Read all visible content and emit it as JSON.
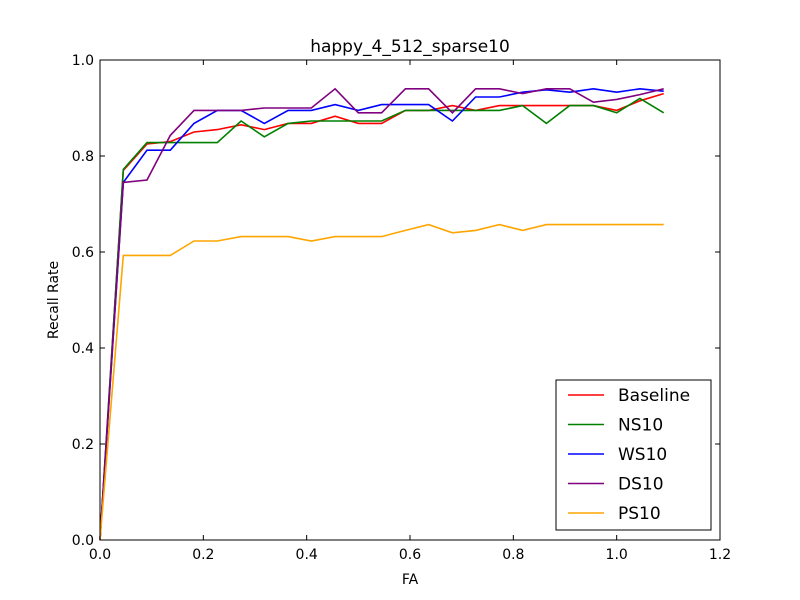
{
  "chart_data": {
    "type": "line",
    "title": "happy_4_512_sparse10",
    "xlabel": "FA",
    "ylabel": "Recall Rate",
    "xlim": [
      0.0,
      1.2
    ],
    "ylim": [
      0.0,
      1.0
    ],
    "xticks": [
      0.0,
      0.2,
      0.4,
      0.6,
      0.8,
      1.0,
      1.2
    ],
    "yticks": [
      0.0,
      0.2,
      0.4,
      0.6,
      0.8,
      1.0
    ],
    "xtick_labels": [
      "0.0",
      "0.2",
      "0.4",
      "0.6",
      "0.8",
      "1.0",
      "1.2"
    ],
    "ytick_labels": [
      "0.0",
      "0.2",
      "0.4",
      "0.6",
      "0.8",
      "1.0"
    ],
    "grid": false,
    "legend_position": "lower-right",
    "x": [
      0.0,
      0.045,
      0.091,
      0.136,
      0.182,
      0.227,
      0.273,
      0.318,
      0.364,
      0.409,
      0.455,
      0.5,
      0.545,
      0.591,
      0.636,
      0.682,
      0.727,
      0.773,
      0.818,
      0.864,
      0.909,
      0.955,
      1.0,
      1.045,
      1.091
    ],
    "series": [
      {
        "name": "Baseline",
        "color": "#ff0000",
        "values": [
          0.0,
          0.77,
          0.825,
          0.83,
          0.85,
          0.855,
          0.865,
          0.855,
          0.868,
          0.868,
          0.883,
          0.868,
          0.868,
          0.895,
          0.895,
          0.905,
          0.895,
          0.905,
          0.905,
          0.905,
          0.905,
          0.905,
          0.895,
          0.915,
          0.93
        ]
      },
      {
        "name": "NS10",
        "color": "#008000",
        "values": [
          0.0,
          0.772,
          0.828,
          0.828,
          0.828,
          0.828,
          0.873,
          0.84,
          0.868,
          0.873,
          0.873,
          0.873,
          0.873,
          0.895,
          0.895,
          0.895,
          0.895,
          0.895,
          0.905,
          0.868,
          0.905,
          0.905,
          0.89,
          0.92,
          0.89
        ]
      },
      {
        "name": "WS10",
        "color": "#0000ff",
        "values": [
          0.0,
          0.745,
          0.812,
          0.812,
          0.868,
          0.895,
          0.895,
          0.868,
          0.895,
          0.895,
          0.907,
          0.895,
          0.907,
          0.907,
          0.907,
          0.873,
          0.923,
          0.923,
          0.933,
          0.938,
          0.933,
          0.94,
          0.933,
          0.94,
          0.935
        ]
      },
      {
        "name": "DS10",
        "color": "#800080",
        "values": [
          0.0,
          0.745,
          0.75,
          0.843,
          0.895,
          0.895,
          0.895,
          0.9,
          0.9,
          0.9,
          0.94,
          0.89,
          0.89,
          0.94,
          0.94,
          0.89,
          0.94,
          0.94,
          0.93,
          0.94,
          0.94,
          0.912,
          0.918,
          0.928,
          0.94
        ]
      },
      {
        "name": "PS10",
        "color": "#ffa500",
        "values": [
          0.0,
          0.593,
          0.593,
          0.593,
          0.623,
          0.623,
          0.632,
          0.632,
          0.632,
          0.623,
          0.632,
          0.632,
          0.632,
          0.645,
          0.657,
          0.64,
          0.645,
          0.657,
          0.645,
          0.657,
          0.657,
          0.657,
          0.657,
          0.657,
          0.657
        ]
      }
    ]
  }
}
